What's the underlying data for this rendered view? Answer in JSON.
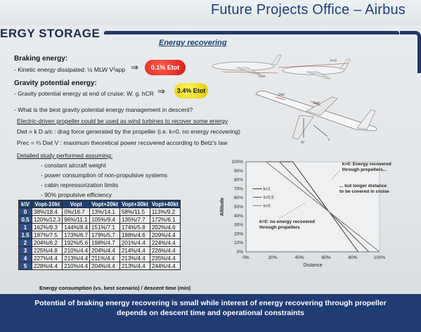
{
  "header": {
    "title": "Future Projects Office – Airbus"
  },
  "section": {
    "title": "ERGY STORAGE",
    "subtitle": "Energy recovering"
  },
  "braking": {
    "heading": "Braking energy:",
    "line": "- Kinetic energy dissipated: ½ MLW V²app",
    "pill": "0.1% Etot"
  },
  "gravity": {
    "heading": "Gravity potential energy:",
    "line": "- Gravity potential energy at end of cruise: W. g. hCR",
    "pill": "3.4% Etot"
  },
  "question": "- What is the best gravity potential energy management in descent?",
  "propeller": {
    "line1": "Electric-driven propeller could be used as wind turbines to recover some energy",
    "line2": "Dwt = k D a/c : drag force generated by the propeller (i.e. k=0, no energy recovering)",
    "line3": "Prec = ⅔ Dwt V : maximum theoretical power recovered according to Betz's law"
  },
  "study": {
    "heading": "Detailed study performed assuming:",
    "items": [
      "- constant aircraft weight",
      "- power consumption of non-propulsive systems",
      "- cabin repressurization limits",
      "- 90% propulsive efficiency"
    ]
  },
  "plane_labels": {
    "vz": "Vwz",
    "f": "F=0",
    "dwt1": "Dwt",
    "dwt2": "Dwt",
    "w": "W",
    "v": "V"
  },
  "table": {
    "headers": [
      "k",
      "V",
      "Vopt-10kt",
      "Vopt",
      "Vopt+20kt",
      "Vopt+30kt",
      "Vopt+40kt"
    ],
    "rows": [
      {
        "k": "0",
        "cells": [
          "38%/18.4",
          "0%/16.7",
          "13%/14.1",
          "58%/11.5",
          "113%/9.2"
        ]
      },
      {
        "k": "0.5",
        "cells": [
          "120%/12.3",
          "96%/11.1",
          "105%/9.4",
          "135%/7.7",
          "172%/6.1"
        ]
      },
      {
        "k": "1",
        "cells": [
          "162%/9.3",
          "144%/8.4",
          "151%/7.1",
          "174%/5.8",
          "202%/4.6"
        ]
      },
      {
        "k": "1.5",
        "cells": [
          "187%/7.5",
          "173%/6.7",
          "179%/5.7",
          "198%/4.6",
          "209%/4.4"
        ]
      },
      {
        "k": "2",
        "cells": [
          "204%/6.2",
          "192%/5.6",
          "198%/4.7",
          "201%/4.4",
          "224%/4.4"
        ]
      },
      {
        "k": "3",
        "cells": [
          "225%/4.8",
          "210%/4.4",
          "204%/4.4",
          "214%/4.4",
          "226%/4.4"
        ]
      },
      {
        "k": "4",
        "cells": [
          "227%/4.4",
          "213%/4.4",
          "211%/4.4",
          "213%/4.4",
          "235%/4.4"
        ]
      },
      {
        "k": "5",
        "cells": [
          "228%/4.4",
          "210%/4.4",
          "204%/4.4",
          "213%/4.4",
          "244%/4.4"
        ]
      }
    ],
    "caption": "Energy consumption (vs. best scenario) / descent time (min)"
  },
  "chart_data": {
    "type": "line",
    "xlabel": "Distance",
    "ylabel": "Altitude",
    "x_ticks": [
      "0%",
      "20%",
      "40%",
      "60%",
      "80%",
      "100%"
    ],
    "y_ticks": [
      "0%",
      "10%",
      "20%",
      "30%",
      "40%",
      "50%",
      "60%",
      "70%",
      "80%",
      "90%",
      "100%"
    ],
    "xlim": [
      0,
      100
    ],
    "ylim": [
      0,
      100
    ],
    "series": [
      {
        "name": "k=1",
        "x": [
          0,
          35,
          84
        ],
        "y": [
          100,
          100,
          0
        ]
      },
      {
        "name": "k=0.5",
        "x": [
          0,
          25,
          92
        ],
        "y": [
          100,
          100,
          0
        ]
      },
      {
        "name": "k=0",
        "x": [
          0,
          15,
          100
        ],
        "y": [
          100,
          100,
          0
        ]
      }
    ],
    "annotations": {
      "k_gt_0": "k>0: Energy recovered through propellers...",
      "longer": "... but longer distance to be covered in cruise",
      "k0": "k=0: no energy recovered through propellers"
    }
  },
  "footer": {
    "line1": "Potential of braking energy recovering is small while interest of energy recovering through propeller",
    "line2": "depends on descent time and operational constraints"
  },
  "colors": {
    "navy": "#1f3c73",
    "red_pill": "#d51e14",
    "yellow_pill": "#e0c800"
  }
}
